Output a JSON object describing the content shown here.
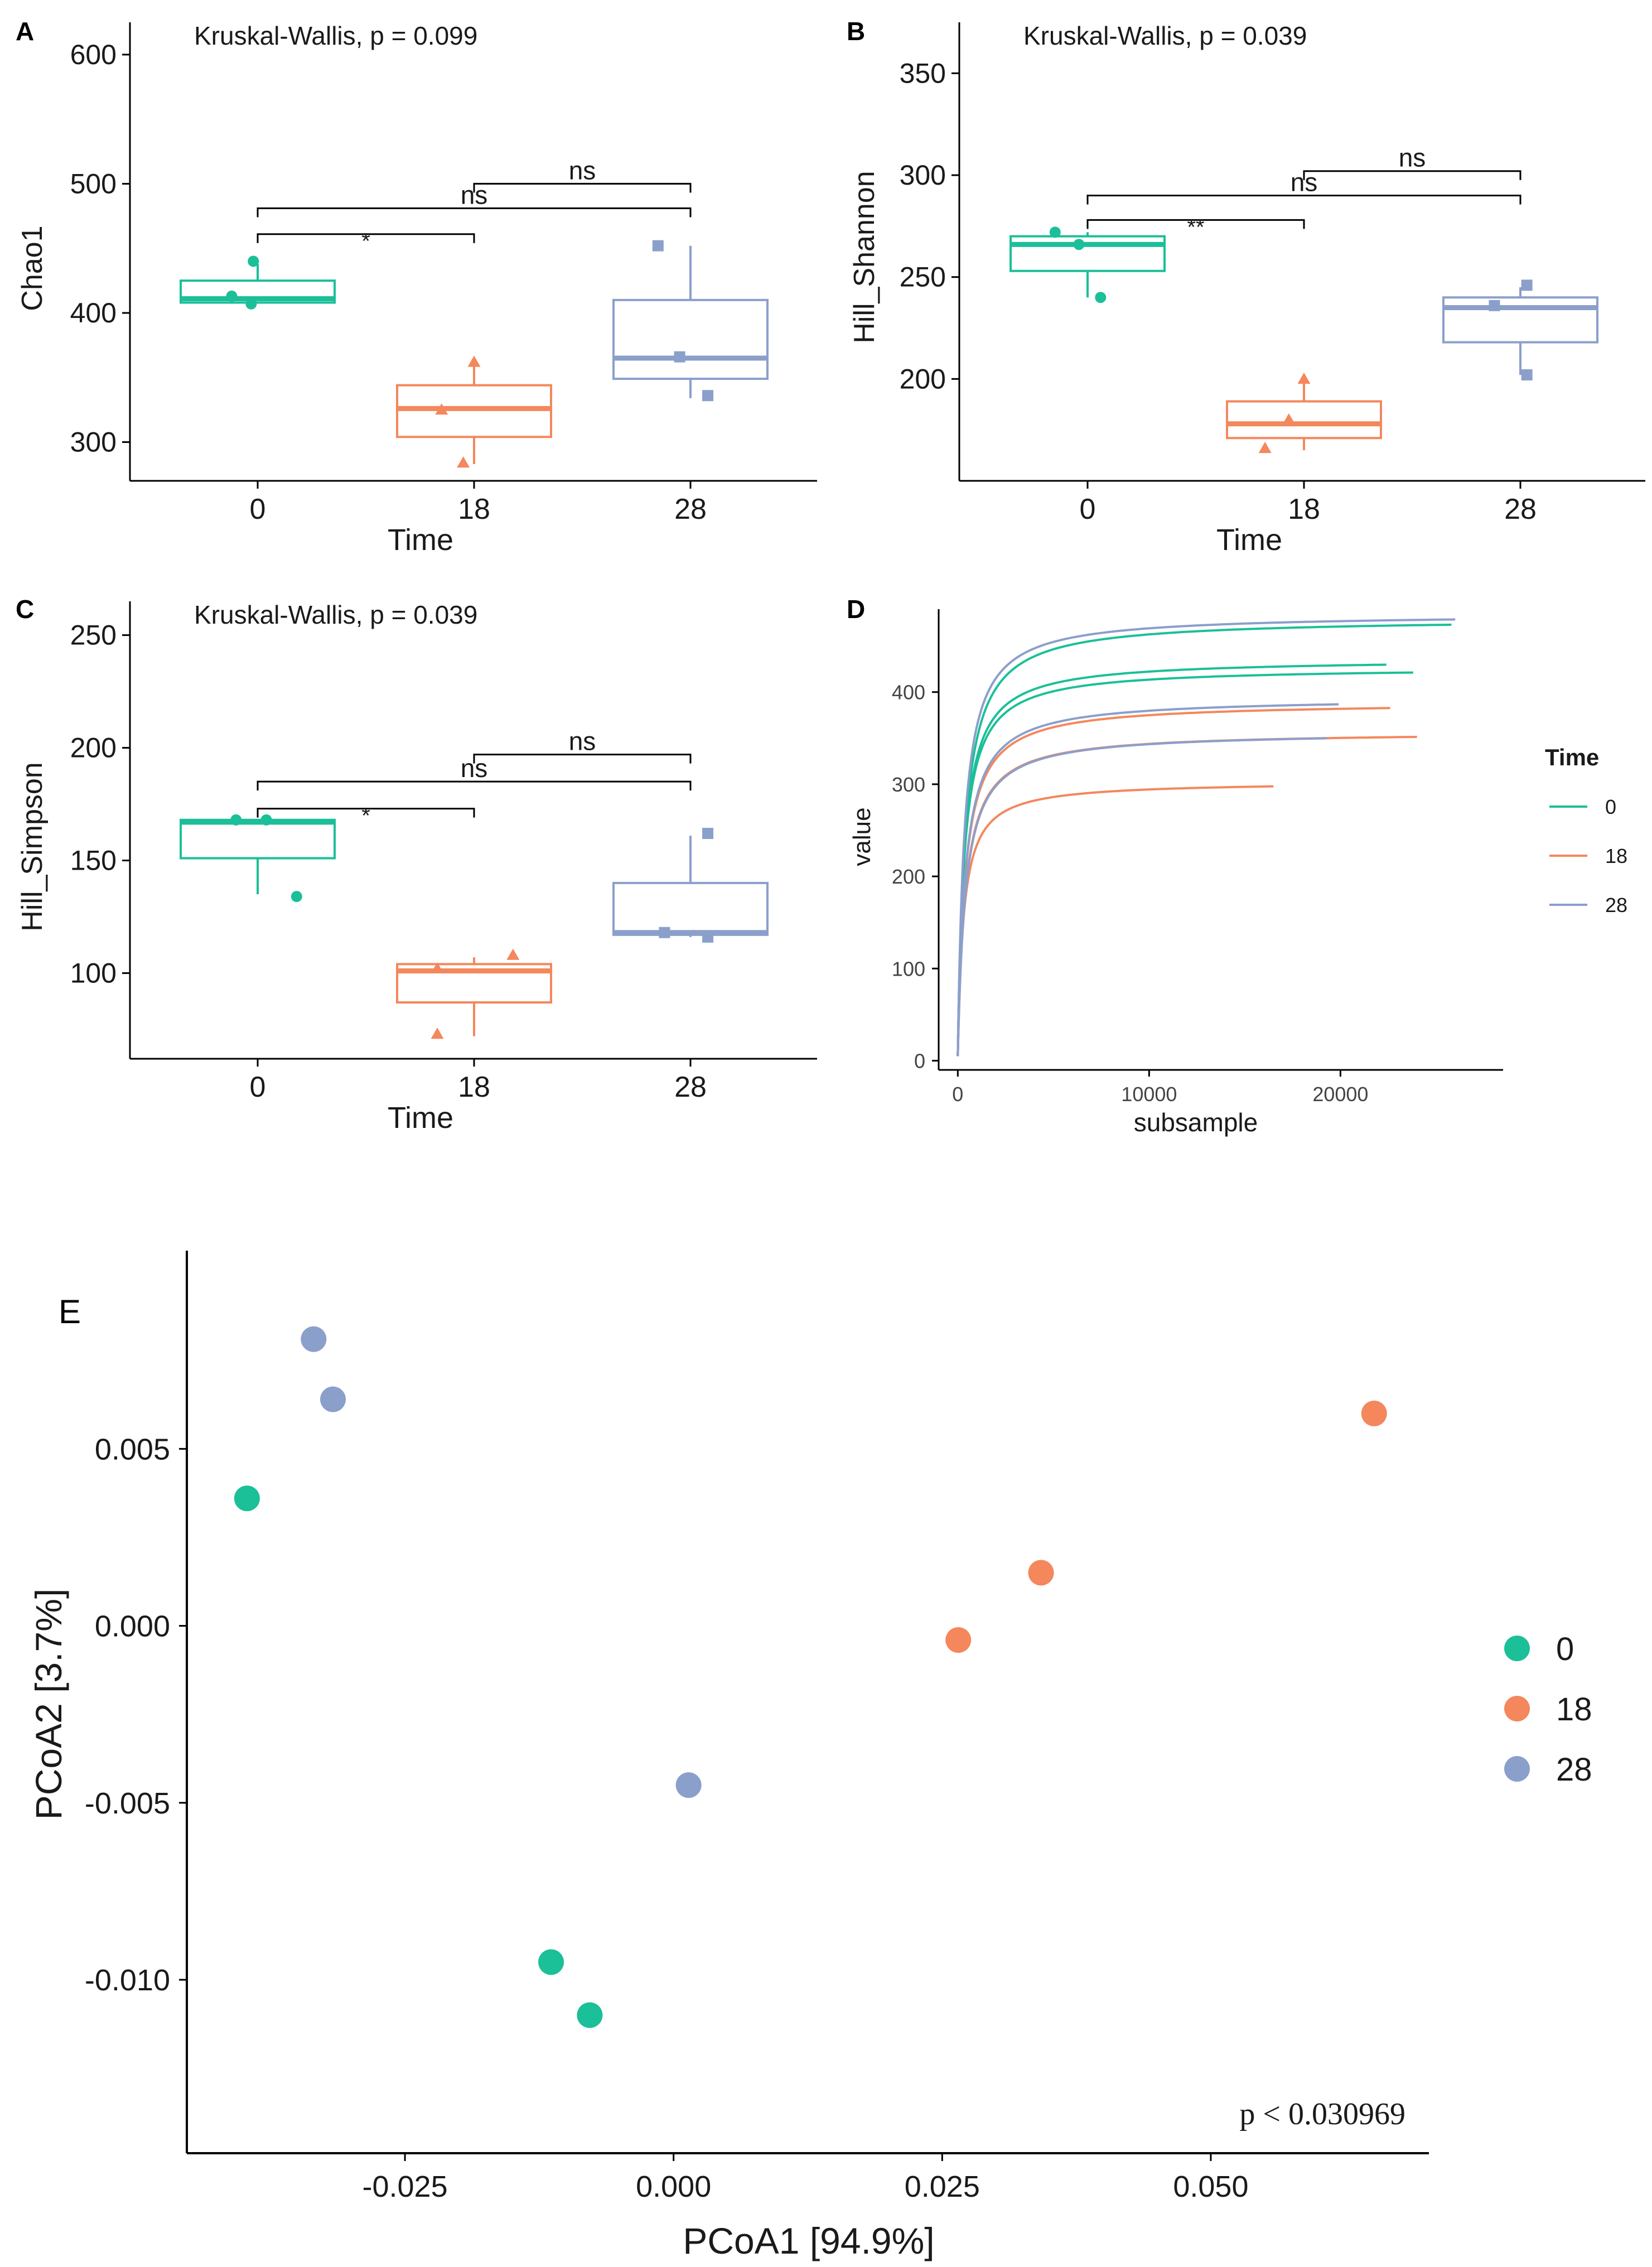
{
  "colors": {
    "t0": "#1bbf98",
    "t18": "#f4875c",
    "t28": "#8b9fcb",
    "axis": "#000000",
    "text": "#1a1a1a"
  },
  "chart_data": [
    {
      "type": "box",
      "panel": "A",
      "stat_text": "Kruskal-Wallis, p = 0.099",
      "xlabel": "Time",
      "ylabel": "Chao1",
      "categories": [
        "0",
        "18",
        "28"
      ],
      "ylim": [
        270,
        625
      ],
      "yticks": [
        300,
        400,
        500,
        600
      ],
      "boxes": [
        {
          "q1": 408,
          "median": 411,
          "q3": 425,
          "whisker_low": 408,
          "whisker_high": 438
        },
        {
          "q1": 304,
          "median": 326,
          "q3": 344,
          "whisker_low": 283,
          "whisker_high": 362
        },
        {
          "q1": 349,
          "median": 365,
          "q3": 410,
          "whisker_low": 334,
          "whisker_high": 452
        }
      ],
      "points": [
        {
          "group": 0,
          "x": -0.02,
          "y": 440
        },
        {
          "group": 0,
          "x": -0.12,
          "y": 413
        },
        {
          "group": 0,
          "x": -0.03,
          "y": 407
        },
        {
          "group": 1,
          "x": 0.0,
          "y": 362
        },
        {
          "group": 1,
          "x": -0.05,
          "y": 284
        },
        {
          "group": 1,
          "x": -0.15,
          "y": 325
        },
        {
          "group": 2,
          "x": -0.15,
          "y": 452
        },
        {
          "group": 2,
          "x": -0.05,
          "y": 366
        },
        {
          "group": 2,
          "x": 0.08,
          "y": 336
        }
      ],
      "brackets": [
        {
          "from": 0,
          "to": 1,
          "y": 461,
          "label": "*"
        },
        {
          "from": 0,
          "to": 2,
          "y": 481,
          "label": "ns"
        },
        {
          "from": 1,
          "to": 2,
          "y": 500,
          "label": "ns"
        }
      ]
    },
    {
      "type": "box",
      "panel": "B",
      "stat_text": "Kruskal-Wallis, p = 0.039",
      "xlabel": "Time",
      "ylabel": "Hill_Shannon",
      "categories": [
        "0",
        "18",
        "28"
      ],
      "ylim": [
        150,
        375
      ],
      "yticks": [
        200,
        250,
        300,
        350
      ],
      "boxes": [
        {
          "q1": 253,
          "median": 266,
          "q3": 270,
          "whisker_low": 240,
          "whisker_high": 272
        },
        {
          "q1": 171,
          "median": 178,
          "q3": 189,
          "whisker_low": 165,
          "whisker_high": 200
        },
        {
          "q1": 218,
          "median": 235,
          "q3": 240,
          "whisker_low": 202,
          "whisker_high": 245
        }
      ],
      "points": [
        {
          "group": 0,
          "x": -0.15,
          "y": 272
        },
        {
          "group": 0,
          "x": -0.04,
          "y": 266
        },
        {
          "group": 0,
          "x": 0.06,
          "y": 240
        },
        {
          "group": 1,
          "x": 0.0,
          "y": 200
        },
        {
          "group": 1,
          "x": -0.18,
          "y": 166
        },
        {
          "group": 1,
          "x": -0.07,
          "y": 180
        },
        {
          "group": 2,
          "x": 0.03,
          "y": 246
        },
        {
          "group": 2,
          "x": -0.12,
          "y": 236
        },
        {
          "group": 2,
          "x": 0.03,
          "y": 202
        }
      ],
      "brackets": [
        {
          "from": 0,
          "to": 1,
          "y": 278,
          "label": "**"
        },
        {
          "from": 0,
          "to": 2,
          "y": 290,
          "label": "ns"
        },
        {
          "from": 1,
          "to": 2,
          "y": 302,
          "label": "ns"
        }
      ]
    },
    {
      "type": "box",
      "panel": "C",
      "stat_text": "Kruskal-Wallis, p = 0.039",
      "xlabel": "Time",
      "ylabel": "Hill_Simpson",
      "categories": [
        "0",
        "18",
        "28"
      ],
      "ylim": [
        62,
        265
      ],
      "yticks": [
        100,
        150,
        200,
        250
      ],
      "boxes": [
        {
          "q1": 151,
          "median": 167,
          "q3": 168,
          "whisker_low": 135,
          "whisker_high": 168
        },
        {
          "q1": 87,
          "median": 101,
          "q3": 104,
          "whisker_low": 72,
          "whisker_high": 107
        },
        {
          "q1": 117,
          "median": 118,
          "q3": 140,
          "whisker_low": 116,
          "whisker_high": 161
        }
      ],
      "points": [
        {
          "group": 0,
          "x": -0.1,
          "y": 168
        },
        {
          "group": 0,
          "x": 0.04,
          "y": 168
        },
        {
          "group": 0,
          "x": 0.18,
          "y": 134
        },
        {
          "group": 1,
          "x": 0.18,
          "y": 108
        },
        {
          "group": 1,
          "x": -0.17,
          "y": 73
        },
        {
          "group": 1,
          "x": -0.17,
          "y": 102
        },
        {
          "group": 2,
          "x": 0.08,
          "y": 162
        },
        {
          "group": 2,
          "x": -0.12,
          "y": 118
        },
        {
          "group": 2,
          "x": 0.08,
          "y": 116
        }
      ],
      "brackets": [
        {
          "from": 0,
          "to": 1,
          "y": 173,
          "label": "*"
        },
        {
          "from": 0,
          "to": 2,
          "y": 185,
          "label": "ns"
        },
        {
          "from": 1,
          "to": 2,
          "y": 197,
          "label": "ns"
        }
      ]
    },
    {
      "type": "line",
      "panel": "D",
      "title": "",
      "xlabel": "subsample",
      "ylabel": "value",
      "xlim": [
        -1000,
        28500
      ],
      "ylim": [
        -10,
        490
      ],
      "xticks": [
        0,
        10000,
        20000
      ],
      "yticks": [
        0,
        100,
        200,
        300,
        400
      ],
      "legend": {
        "title": "Time",
        "entries": [
          "0",
          "18",
          "28"
        ]
      },
      "series": [
        {
          "name": "0",
          "group": 0,
          "xmax": 25800,
          "asymptote": 475,
          "k": 380
        },
        {
          "name": "0",
          "group": 0,
          "xmax": 23800,
          "asymptote": 422,
          "k": 330
        },
        {
          "name": "0",
          "group": 0,
          "xmax": 22400,
          "asymptote": 431,
          "k": 330
        },
        {
          "name": "18",
          "group": 1,
          "xmax": 22600,
          "asymptote": 384,
          "k": 380
        },
        {
          "name": "18",
          "group": 1,
          "xmax": 24000,
          "asymptote": 352,
          "k": 390
        },
        {
          "name": "18",
          "group": 1,
          "xmax": 16500,
          "asymptote": 298,
          "k": 300
        },
        {
          "name": "28",
          "group": 2,
          "xmax": 26000,
          "asymptote": 480,
          "k": 340
        },
        {
          "name": "28",
          "group": 2,
          "xmax": 19900,
          "asymptote": 389,
          "k": 380
        },
        {
          "name": "28",
          "group": 2,
          "xmax": 19300,
          "asymptote": 352,
          "k": 400
        }
      ]
    },
    {
      "type": "scatter",
      "panel": "E",
      "xlabel": "PCoA1   [94.9%]",
      "ylabel": "PCoA2   [3.7%]",
      "annotation": "p < 0.030969",
      "xlim": [
        -0.0453,
        0.0703
      ],
      "ylim": [
        -0.0149,
        0.0106
      ],
      "xticks": [
        "-0.025",
        "0.000",
        "0.025",
        "0.050"
      ],
      "yticks": [
        "-0.010",
        "-0.005",
        "0.000",
        "0.005"
      ],
      "legend": {
        "entries": [
          "0",
          "18",
          "28"
        ]
      },
      "points": [
        {
          "group": 2,
          "x": -0.0335,
          "y": 0.0081
        },
        {
          "group": 2,
          "x": -0.0317,
          "y": 0.0064
        },
        {
          "group": 0,
          "x": -0.0397,
          "y": 0.0036
        },
        {
          "group": 1,
          "x": 0.0652,
          "y": 0.006
        },
        {
          "group": 1,
          "x": 0.0342,
          "y": 0.0015
        },
        {
          "group": 1,
          "x": 0.0265,
          "y": -0.0004
        },
        {
          "group": 2,
          "x": 0.0014,
          "y": -0.0045
        },
        {
          "group": 0,
          "x": -0.0114,
          "y": -0.0095
        },
        {
          "group": 0,
          "x": -0.0078,
          "y": -0.011
        }
      ]
    }
  ],
  "panel_labels": [
    "A",
    "B",
    "C",
    "D",
    "E"
  ]
}
